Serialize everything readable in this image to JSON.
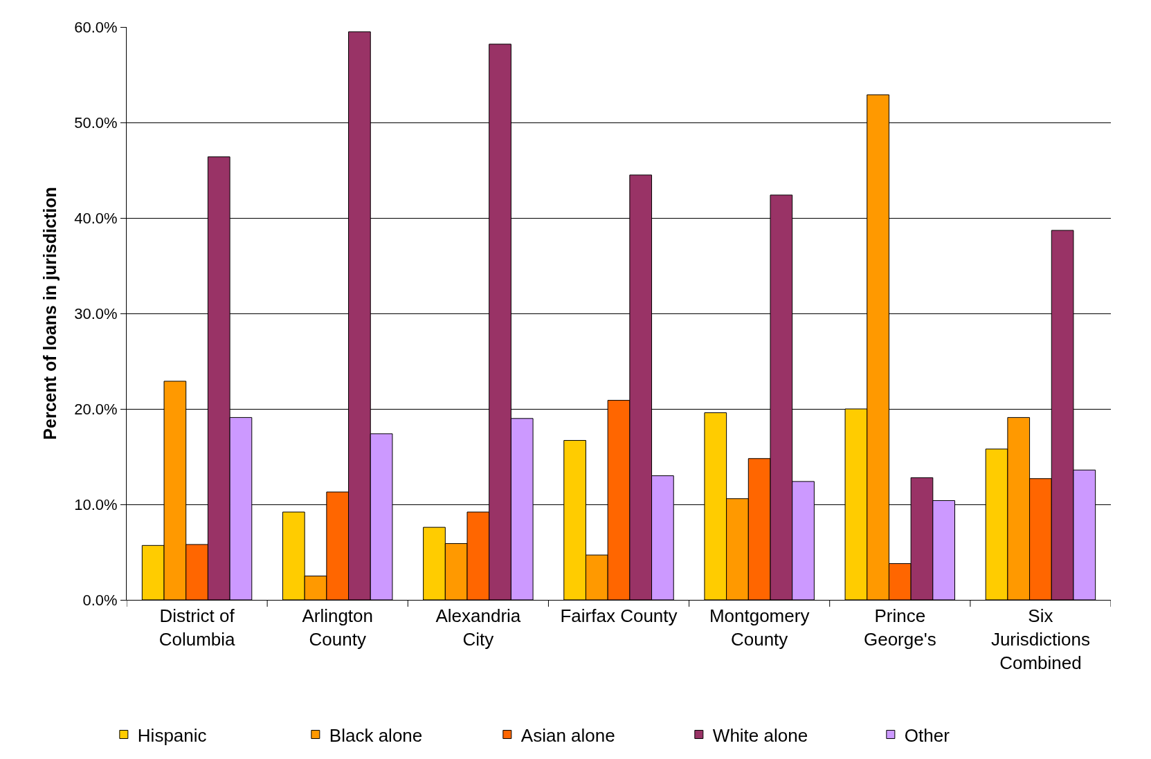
{
  "chart_data": {
    "type": "bar",
    "ylabel": "Percent of loans in jurisdiction",
    "categories": [
      "District of Columbia",
      "Arlington County",
      "Alexandria City",
      "Fairfax County",
      "Montgomery County",
      "Prince George's",
      "Six Jurisdictions Combined"
    ],
    "series": [
      {
        "name": "Hispanic",
        "color": "#ffcc00",
        "values": [
          5.7,
          9.2,
          7.6,
          16.7,
          19.6,
          20.0,
          15.8
        ]
      },
      {
        "name": "Black alone",
        "color": "#ff9900",
        "values": [
          22.9,
          2.5,
          5.9,
          4.7,
          10.6,
          52.9,
          19.1
        ]
      },
      {
        "name": "Asian alone",
        "color": "#ff6600",
        "values": [
          5.8,
          11.3,
          9.2,
          20.9,
          14.8,
          3.8,
          12.7
        ]
      },
      {
        "name": "White alone",
        "color": "#993366",
        "values": [
          46.4,
          59.5,
          58.2,
          44.5,
          42.4,
          12.8,
          38.7
        ]
      },
      {
        "name": "Other",
        "color": "#cc99ff",
        "values": [
          19.1,
          17.4,
          19.0,
          13.0,
          12.4,
          10.4,
          13.6
        ]
      }
    ],
    "ylim": [
      0,
      60
    ],
    "yticks": [
      {
        "value": 0,
        "label": "0.0%"
      },
      {
        "value": 10,
        "label": "10.0%"
      },
      {
        "value": 20,
        "label": "20.0%"
      },
      {
        "value": 30,
        "label": "30.0%"
      },
      {
        "value": 40,
        "label": "40.0%"
      },
      {
        "value": 50,
        "label": "50.0%"
      },
      {
        "value": 60,
        "label": "60.0%"
      }
    ],
    "grid": "y",
    "legend": "bottom"
  }
}
